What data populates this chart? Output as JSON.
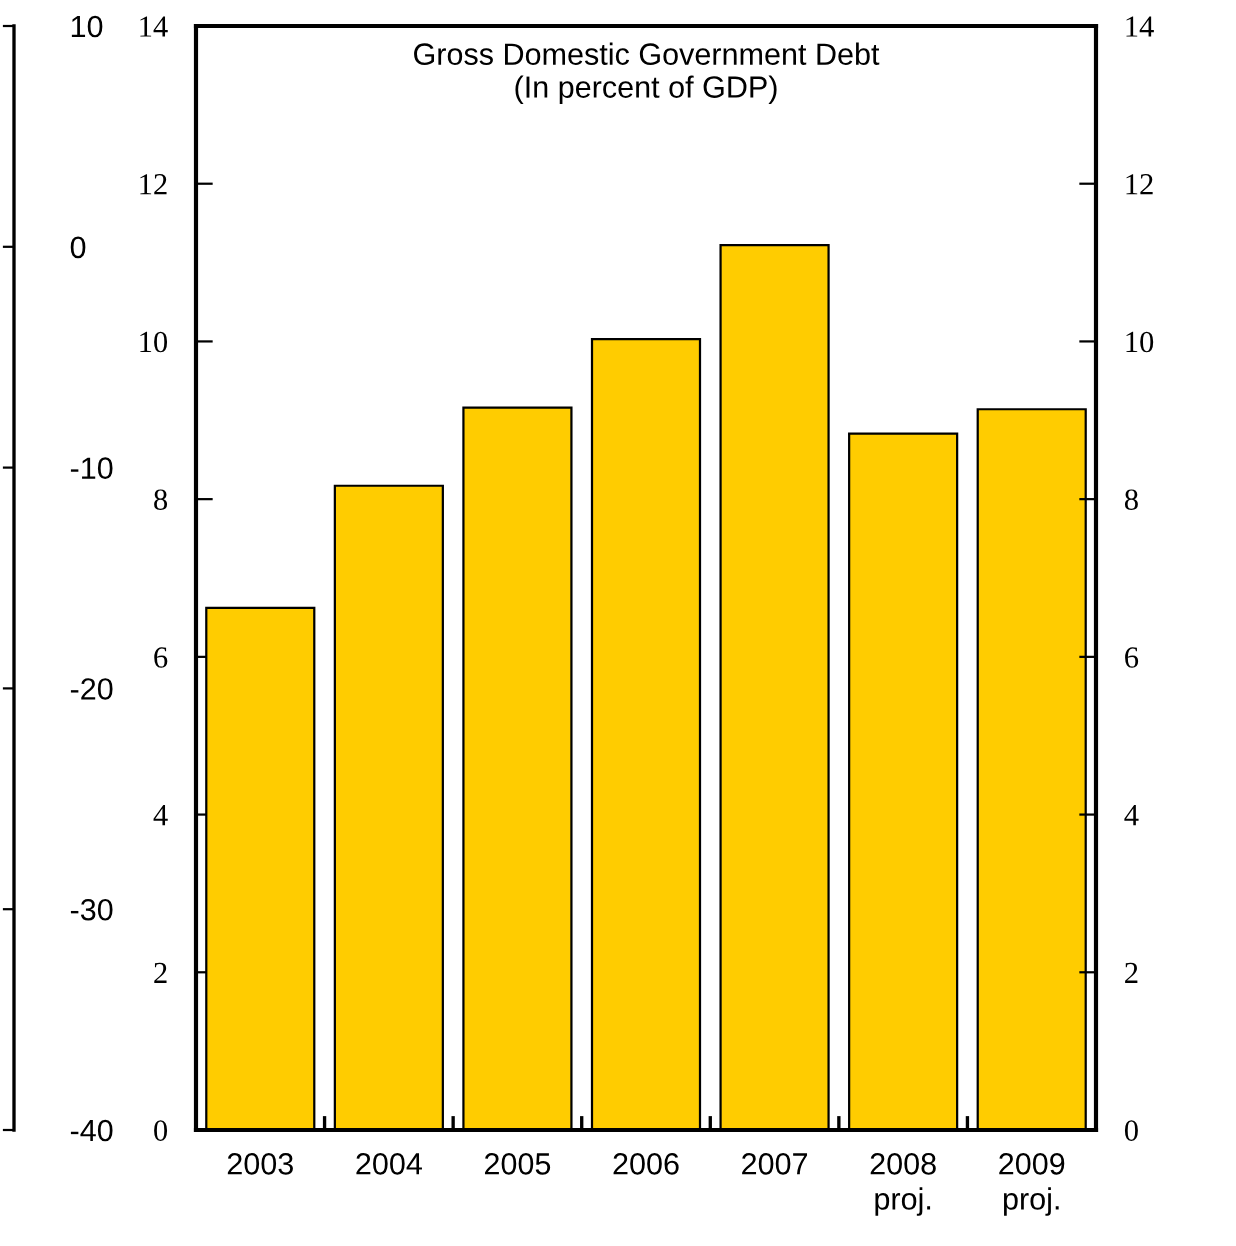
{
  "chart_data": {
    "type": "bar",
    "title": "Gross Domestic Government Debt\n(In percent of GDP)",
    "categories": [
      "2003",
      "2004",
      "2005",
      "2006",
      "2007",
      "2008\nproj.",
      "2009\nproj."
    ],
    "values": [
      6.62,
      8.17,
      9.16,
      10.03,
      11.22,
      8.83,
      9.14
    ],
    "color": "#ffcc00",
    "ylim": [
      0,
      14
    ],
    "yticks": [
      0,
      2,
      4,
      6,
      8,
      10,
      12,
      14
    ],
    "y2lim": [
      0,
      14
    ],
    "y2ticks": [
      0,
      2,
      4,
      6,
      8,
      10,
      12,
      14
    ],
    "y3lim": [
      -40,
      10
    ],
    "y3ticks": [
      -40,
      -30,
      -20,
      -10,
      0,
      10
    ],
    "grid": false
  }
}
